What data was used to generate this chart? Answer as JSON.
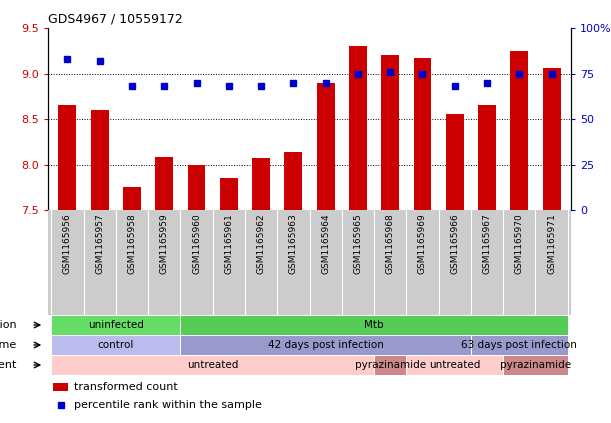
{
  "title": "GDS4967 / 10559172",
  "samples": [
    "GSM1165956",
    "GSM1165957",
    "GSM1165958",
    "GSM1165959",
    "GSM1165960",
    "GSM1165961",
    "GSM1165962",
    "GSM1165963",
    "GSM1165964",
    "GSM1165965",
    "GSM1165968",
    "GSM1165969",
    "GSM1165966",
    "GSM1165967",
    "GSM1165970",
    "GSM1165971"
  ],
  "bar_values": [
    8.65,
    8.6,
    7.75,
    8.08,
    8.0,
    7.85,
    8.07,
    8.14,
    8.9,
    9.3,
    9.2,
    9.17,
    8.55,
    8.65,
    9.25,
    9.06
  ],
  "dot_values": [
    83,
    82,
    68,
    68,
    70,
    68,
    68,
    70,
    70,
    75,
    76,
    75,
    68,
    70,
    75,
    75
  ],
  "bar_color": "#cc0000",
  "dot_color": "#0000cc",
  "ylim_left": [
    7.5,
    9.5
  ],
  "ylim_right": [
    0,
    100
  ],
  "yticks_left": [
    7.5,
    8.0,
    8.5,
    9.0,
    9.5
  ],
  "yticks_right": [
    0,
    25,
    50,
    75,
    100
  ],
  "ytick_labels_right": [
    "0",
    "25",
    "50",
    "75",
    "100%"
  ],
  "grid_values": [
    8.0,
    8.5,
    9.0
  ],
  "infection_rows": [
    {
      "text": "uninfected",
      "start": 0,
      "end": 3,
      "color": "#66dd66"
    },
    {
      "text": "Mtb",
      "start": 4,
      "end": 15,
      "color": "#55cc55"
    }
  ],
  "time_rows": [
    {
      "text": "control",
      "start": 0,
      "end": 3,
      "color": "#bbbbee"
    },
    {
      "text": "42 days post infection",
      "start": 4,
      "end": 12,
      "color": "#9999cc"
    },
    {
      "text": "63 days post infection",
      "start": 13,
      "end": 15,
      "color": "#9999cc"
    }
  ],
  "agent_rows": [
    {
      "text": "untreated",
      "start": 0,
      "end": 9,
      "color": "#ffcccc"
    },
    {
      "text": "pyrazinamide",
      "start": 10,
      "end": 10,
      "color": "#cc8888"
    },
    {
      "text": "untreated",
      "start": 11,
      "end": 13,
      "color": "#ffcccc"
    },
    {
      "text": "pyrazinamide",
      "start": 14,
      "end": 15,
      "color": "#cc8888"
    }
  ],
  "legend_bar_color": "#cc0000",
  "legend_dot_color": "#0000cc",
  "legend_bar_label": "transformed count",
  "legend_dot_label": "percentile rank within the sample",
  "sample_bg_color": "#cccccc",
  "sample_sep_color": "#ffffff"
}
